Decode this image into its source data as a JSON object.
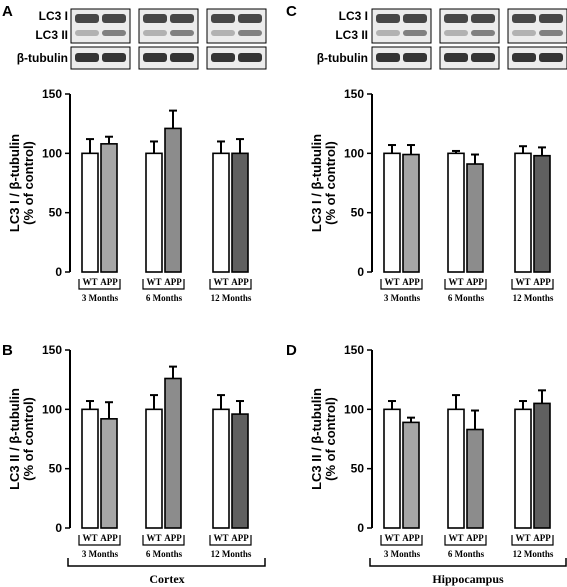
{
  "figure": {
    "panel_letters": [
      "A",
      "B",
      "C",
      "D"
    ],
    "blot_labels": [
      "LC3 I",
      "LC3 II",
      "β-tubulin"
    ],
    "region_labels": [
      "Cortex",
      "Hippocampus"
    ],
    "group_labels": [
      "WT",
      "APP"
    ],
    "age_labels": [
      "3 Months",
      "6 Months",
      "12 Months"
    ],
    "ylabel_lc3i": "LC3 I / β-tubulin",
    "ylabel_lc3ii": "LC3 II / β-tubulin",
    "ylabel_sub": "(% of control)",
    "yticks": [
      "0",
      "50",
      "100",
      "150"
    ]
  },
  "colors": {
    "wt": "#ffffff",
    "app_3m": "#a6a6a6",
    "app_6m": "#8c8c8c",
    "app_12m": "#606060",
    "blot_bg": "#ececec",
    "band": "#2a2a2a"
  },
  "chart_data": [
    {
      "panel": "A",
      "type": "bar",
      "ylabel": "LC3 I / β-tubulin (% of control)",
      "ylim": [
        0,
        150
      ],
      "categories": [
        "3 Months",
        "6 Months",
        "12 Months"
      ],
      "series": [
        {
          "name": "WT",
          "values": [
            100,
            100,
            100
          ],
          "errors": [
            12,
            10,
            10
          ]
        },
        {
          "name": "APP",
          "values": [
            108,
            121,
            100
          ],
          "errors": [
            6,
            15,
            12
          ]
        }
      ]
    },
    {
      "panel": "B",
      "type": "bar",
      "ylabel": "LC3 II / β-tubulin (% of control)",
      "ylim": [
        0,
        150
      ],
      "categories": [
        "3 Months",
        "6 Months",
        "12 Months"
      ],
      "series": [
        {
          "name": "WT",
          "values": [
            100,
            100,
            100
          ],
          "errors": [
            7,
            12,
            12
          ]
        },
        {
          "name": "APP",
          "values": [
            92,
            126,
            96
          ],
          "errors": [
            14,
            10,
            11
          ]
        }
      ]
    },
    {
      "panel": "C",
      "type": "bar",
      "ylabel": "LC3 I / β-tubulin (% of control)",
      "ylim": [
        0,
        150
      ],
      "categories": [
        "3 Months",
        "6 Months",
        "12 Months"
      ],
      "series": [
        {
          "name": "WT",
          "values": [
            100,
            100,
            100
          ],
          "errors": [
            7,
            2,
            6
          ]
        },
        {
          "name": "APP",
          "values": [
            99,
            91,
            98
          ],
          "errors": [
            8,
            8,
            7
          ]
        }
      ]
    },
    {
      "panel": "D",
      "type": "bar",
      "ylabel": "LC3 II / β-tubulin (% of control)",
      "ylim": [
        0,
        150
      ],
      "categories": [
        "3 Months",
        "6 Months",
        "12 Months"
      ],
      "series": [
        {
          "name": "WT",
          "values": [
            100,
            100,
            100
          ],
          "errors": [
            7,
            12,
            7
          ]
        },
        {
          "name": "APP",
          "values": [
            89,
            83,
            105
          ],
          "errors": [
            4,
            16,
            11
          ]
        }
      ]
    }
  ]
}
